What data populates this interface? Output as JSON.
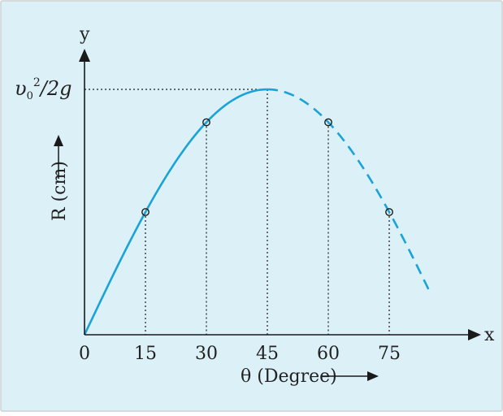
{
  "colors": {
    "background": "#dcf0f8",
    "border": "#d0d0d0",
    "curve": "#1aa3d8",
    "axis": "#1a1a1a",
    "text": "#222222"
  },
  "chart_data": {
    "type": "line",
    "x_axis_letter": "x",
    "y_axis_letter": "y",
    "xlabel": "θ (Degree)",
    "ylabel": "R (cm)",
    "x_ticks": [
      "0",
      "15",
      "30",
      "45",
      "60",
      "75"
    ],
    "x_tick_values": [
      0,
      15,
      30,
      45,
      60,
      75
    ],
    "xlim": [
      0,
      95
    ],
    "ylim": [
      0,
      1.02
    ],
    "y_max_label": {
      "base": "υ",
      "subscript": "0",
      "superscript": "2",
      "rest": "/2g"
    },
    "y_max_value": 1,
    "series": [
      {
        "style": "solid",
        "x_range": [
          0,
          45
        ],
        "formula": "sin(2θ)"
      },
      {
        "style": "dashed",
        "x_range": [
          45,
          85
        ],
        "formula": "sin(2θ)"
      }
    ],
    "points": [
      {
        "x": 15,
        "y": 0.5
      },
      {
        "x": 30,
        "y": 0.866
      },
      {
        "x": 60,
        "y": 0.866
      },
      {
        "x": 75,
        "y": 0.5
      }
    ],
    "grid": false
  }
}
